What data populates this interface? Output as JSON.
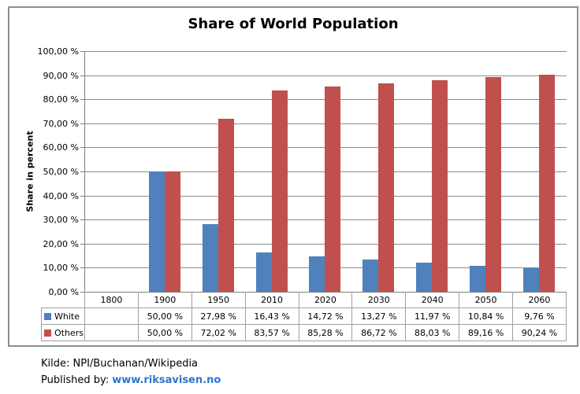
{
  "title": "Share of World Population",
  "y_axis": {
    "title": "Share in percent",
    "tick_labels": [
      "100,00 %",
      "90,00 %",
      "80,00 %",
      "70,00 %",
      "60,00 %",
      "50,00 %",
      "40,00 %",
      "30,00 %",
      "20,00 %",
      "10,00 %",
      "0,00 %"
    ]
  },
  "chart_data": {
    "type": "bar",
    "title": "Share of World Population",
    "xlabel": "",
    "ylabel": "Share in percent",
    "ylim": [
      0,
      100
    ],
    "y_tick_step": 10,
    "grid": true,
    "legend_position": "left-of-data-table",
    "categories": [
      "1800",
      "1900",
      "1950",
      "2010",
      "2020",
      "2030",
      "2040",
      "2050",
      "2060"
    ],
    "series": [
      {
        "name": "White",
        "color": "#4F81BD",
        "values": [
          null,
          50.0,
          27.98,
          16.43,
          14.72,
          13.27,
          11.97,
          10.84,
          9.76
        ]
      },
      {
        "name": "Others",
        "color": "#C0504D",
        "values": [
          null,
          50.0,
          72.02,
          83.57,
          85.28,
          86.72,
          88.03,
          89.16,
          90.24
        ]
      }
    ]
  },
  "data_table": {
    "rows": [
      {
        "label": "White",
        "swatch_color": "#4F81BD",
        "cells": [
          "",
          "50,00 %",
          "27,98 %",
          "16,43 %",
          "14,72 %",
          "13,27 %",
          "11,97 %",
          "10,84 %",
          "9,76 %"
        ]
      },
      {
        "label": "Others",
        "swatch_color": "#C0504D",
        "cells": [
          "",
          "50,00 %",
          "72,02 %",
          "83,57 %",
          "85,28 %",
          "86,72 %",
          "88,03 %",
          "89,16 %",
          "90,24 %"
        ]
      }
    ]
  },
  "footer": {
    "source_line": "Kilde: NPI/Buchanan/Wikipedia",
    "published_prefix": "Published by: ",
    "published_link": "www.riksavisen.no",
    "link_color": "#2E75C8"
  },
  "colors": {
    "bar_white": "#4F81BD",
    "bar_others": "#C0504D",
    "gridline": "#8C8C8C",
    "axis": "#808080",
    "table_border": "#A0A0A0",
    "figure_border": "#8E8E8E"
  }
}
